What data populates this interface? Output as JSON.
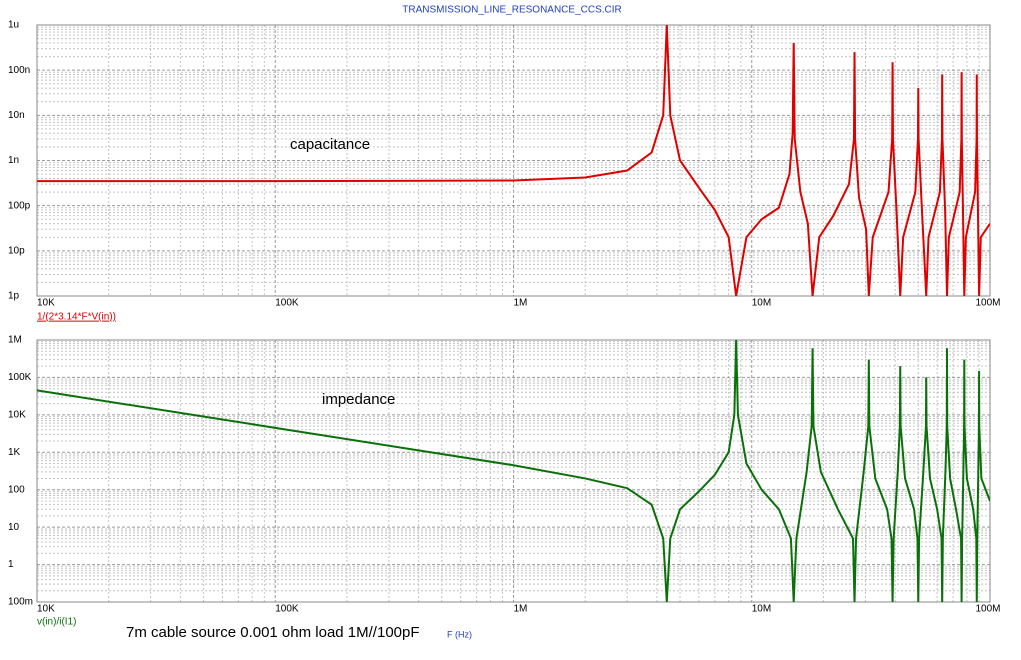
{
  "window_title": "TRANSMISSION_LINE_RESONANCE_CCS.CIR",
  "caption": "7m cable source 0.001 ohm load 1M//100pF",
  "chart_data": [
    {
      "type": "line",
      "xscale": "log",
      "yscale": "log",
      "grid": true,
      "annotation": "capacitance",
      "xlim": [
        10000,
        100000000
      ],
      "xticks": [
        {
          "value": 10000,
          "label": "10K"
        },
        {
          "value": 100000,
          "label": "100K"
        },
        {
          "value": 1000000,
          "label": "1M"
        },
        {
          "value": 10000000,
          "label": "10M"
        },
        {
          "value": 100000000,
          "label": "100M"
        }
      ],
      "ylim": [
        1e-12,
        1e-06
      ],
      "yticks": [
        {
          "value": 1e-12,
          "label": "1p"
        },
        {
          "value": 1e-11,
          "label": "10p"
        },
        {
          "value": 1e-10,
          "label": "100p"
        },
        {
          "value": 1e-09,
          "label": "1n"
        },
        {
          "value": 1e-08,
          "label": "10n"
        },
        {
          "value": 1e-07,
          "label": "100n"
        },
        {
          "value": 1e-06,
          "label": "1u"
        }
      ],
      "x": [
        10000.0,
        100000.0,
        1000000.0,
        2000000.0,
        3000000.0,
        3800000.0,
        4250000.0,
        4400000.0,
        4550000.0,
        5000000.0,
        6000000.0,
        7000000.0,
        8000000.0,
        8600000.0,
        9500000.0,
        11000000.0,
        13000000.0,
        14400000.0,
        14850000.0,
        15000000.0,
        15150000.0,
        16000000.0,
        17200000.0,
        18000000.0,
        19200000.0,
        22000000.0,
        25600000.0,
        26850000.0,
        27000000.0,
        27150000.0,
        28200000.0,
        30200000.0,
        31000000.0,
        32200000.0,
        37500000.0,
        38850000.0,
        39000000.0,
        39150000.0,
        40500000.0,
        42000000.0,
        43200000.0,
        48600000.0,
        49850000.0,
        50000000.0,
        50150000.0,
        51800000.0,
        54000000.0,
        55200000.0,
        61600000.0,
        62850000.0,
        63000000.0,
        63150000.0,
        64800000.0,
        66000000.0,
        67200000.0,
        74600000.0,
        75850000.0,
        76000000.0,
        76150000.0,
        77000000.0,
        78000000.0,
        79200000.0,
        86600000.0,
        87850000.0,
        88000000.0,
        88150000.0,
        89000000.0,
        90000000.0,
        91500000.0,
        100000000.0
      ],
      "series": [
        {
          "name": "1/(2*3.14*F*V(in))",
          "color": "#e00000",
          "values": [
            3.5e-10,
            3.5e-10,
            3.6e-10,
            4.2e-10,
            6e-10,
            1.5e-09,
            1e-08,
            1e-06,
            1e-08,
            1e-09,
            2.5e-10,
            8e-11,
            2e-11,
            1e-12,
            2e-11,
            5e-11,
            9e-11,
            5e-10,
            4e-09,
            4e-07,
            3e-09,
            2e-10,
            4e-11,
            1e-12,
            2e-11,
            6e-11,
            3e-10,
            3e-09,
            2.5e-07,
            3e-09,
            1.5e-10,
            3e-11,
            1e-12,
            2e-11,
            2e-10,
            3e-09,
            1.5e-07,
            3e-09,
            8e-11,
            1e-12,
            2e-11,
            2e-10,
            3e-09,
            4e-08,
            3e-09,
            8e-11,
            1e-12,
            2e-11,
            2e-10,
            3e-09,
            8e-08,
            3e-09,
            8e-11,
            1e-12,
            2e-11,
            2e-10,
            3e-09,
            9e-08,
            3e-09,
            8e-11,
            1e-12,
            2e-11,
            2e-10,
            3e-09,
            8e-08,
            3e-09,
            8e-11,
            1e-12,
            2e-11,
            4e-11
          ]
        }
      ]
    },
    {
      "type": "line",
      "xscale": "log",
      "yscale": "log",
      "grid": true,
      "annotation": "impedance",
      "xlabel": "F (Hz)",
      "xlim": [
        10000,
        100000000
      ],
      "xticks": [
        {
          "value": 10000,
          "label": "10K"
        },
        {
          "value": 100000,
          "label": "100K"
        },
        {
          "value": 1000000,
          "label": "1M"
        },
        {
          "value": 10000000,
          "label": "10M"
        },
        {
          "value": 100000000,
          "label": "100M"
        }
      ],
      "ylim": [
        0.1,
        1000000
      ],
      "yticks": [
        {
          "value": 0.1,
          "label": "100m"
        },
        1,
        10,
        100,
        {
          "value": 1000,
          "label": "1K"
        },
        {
          "value": 10000,
          "label": "10K"
        },
        {
          "value": 100000,
          "label": "100K"
        },
        {
          "value": 1000000,
          "label": "1M"
        }
      ],
      "x": [
        10000.0,
        100000.0,
        1000000.0,
        2000000.0,
        3000000.0,
        3800000.0,
        4250000.0,
        4400000.0,
        4550000.0,
        5000000.0,
        6000000.0,
        7000000.0,
        8000000.0,
        8450000.0,
        8600000.0,
        8750000.0,
        9500000.0,
        11000000.0,
        13000000.0,
        14600000.0,
        15000000.0,
        15400000.0,
        17000000.0,
        17850000.0,
        18000000.0,
        18150000.0,
        19500000.0,
        23000000.0,
        26600000.0,
        27000000.0,
        27400000.0,
        29500000.0,
        30850000.0,
        31000000.0,
        31150000.0,
        33000000.0,
        37000000.0,
        38600000.0,
        39000000.0,
        39400000.0,
        41000000.0,
        41850000.0,
        42000000.0,
        42150000.0,
        44000000.0,
        48000000.0,
        49600000.0,
        50000000.0,
        50400000.0,
        52500000.0,
        53850000.0,
        54000000.0,
        54150000.0,
        56000000.0,
        60000000.0,
        62600000.0,
        63000000.0,
        63400000.0,
        65000000.0,
        65850000.0,
        66000000.0,
        66150000.0,
        68000000.0,
        72000000.0,
        75600000.0,
        76000000.0,
        76400000.0,
        77300000.0,
        77850000.0,
        78000000.0,
        78150000.0,
        80000000.0,
        85000000.0,
        87600000.0,
        88000000.0,
        88400000.0,
        89300000.0,
        89850000.0,
        90000000.0,
        90150000.0,
        92000000.0,
        100000000.0
      ],
      "series": [
        {
          "name": "v(in)/i(I1)",
          "color": "#0a700a",
          "values": [
            45000,
            4500,
            450,
            200,
            110,
            40,
            5,
            0.1,
            5,
            30,
            90,
            250,
            1000,
            10000,
            1000000,
            10000,
            500,
            100,
            30,
            5,
            0.1,
            5,
            300,
            5000,
            600000,
            5000,
            300,
            30,
            5,
            0.1,
            5,
            300,
            5000,
            300000,
            5000,
            200,
            30,
            5,
            0.1,
            5,
            300,
            5000,
            200000,
            5000,
            200,
            30,
            5,
            0.1,
            5,
            300,
            5000,
            100000,
            5000,
            200,
            30,
            5,
            0.1,
            5,
            300,
            5000,
            600000,
            5000,
            200,
            30,
            5,
            0.1,
            5,
            300,
            5000,
            300000,
            5000,
            200,
            30,
            5,
            0.1,
            5,
            300,
            5000,
            150000,
            5000,
            200,
            50
          ]
        }
      ]
    }
  ]
}
